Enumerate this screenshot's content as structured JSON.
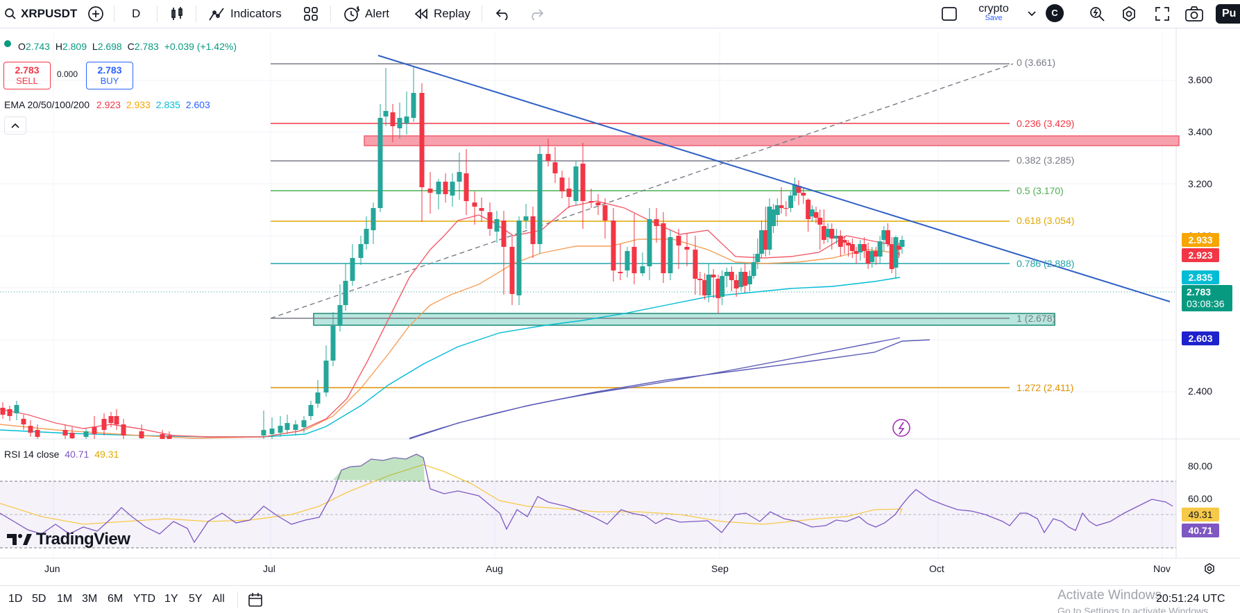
{
  "toolbar": {
    "symbol": "XRPUSDT",
    "interval": "D",
    "indicators_label": "Indicators",
    "alert_label": "Alert",
    "replay_label": "Replay",
    "layout_name": "crypto",
    "layout_status": "Save",
    "account_initial": "C",
    "publish_label": "Pu"
  },
  "legend": {
    "o_label": "O",
    "o": "2.743",
    "h_label": "H",
    "h": "2.809",
    "l_label": "L",
    "l": "2.698",
    "c_label": "C",
    "c": "2.783",
    "change": "+0.039 (+1.42%)",
    "sell_price": "2.783",
    "sell_label": "SELL",
    "spread": "0.000",
    "buy_price": "2.783",
    "buy_label": "BUY",
    "ema_label": "EMA 20/50/100/200",
    "ema20": "2.923",
    "ema50": "2.933",
    "ema100": "2.835",
    "ema200": "2.603"
  },
  "price_axis": {
    "ticks": [
      "3.600",
      "3.400",
      "3.200",
      "2.400"
    ],
    "partial_tick": "3.000",
    "label_ema50": "2.933",
    "label_ema20": "2.923",
    "label_ema100": "2.835",
    "label_last": "2.783",
    "label_countdown": "03:08:36",
    "label_ema200": "2.603"
  },
  "fibonacci": [
    {
      "label": "0 (3.661)",
      "color": "#787b86"
    },
    {
      "label": "0.236 (3.429)",
      "color": "#f23645"
    },
    {
      "label": "0.382 (3.285)",
      "color": "#787b86"
    },
    {
      "label": "0.5 (3.170)",
      "color": "#4caf50"
    },
    {
      "label": "0.618 (3.054)",
      "color": "#e0a800"
    },
    {
      "label": "0.786 (2.888)",
      "color": "#1fa3a8"
    },
    {
      "label": "1 (2.678)",
      "color": "#787b86"
    },
    {
      "label": "1.272 (2.411)",
      "color": "#e09100"
    }
  ],
  "rsi": {
    "label": "RSI 14 close",
    "value": "40.71",
    "ma": "49.31",
    "ticks": [
      "80.00",
      "60.00"
    ],
    "label_ma": "49.31",
    "label_value": "40.71"
  },
  "time_axis": [
    "Jun",
    "Jul",
    "Aug",
    "Sep",
    "Oct",
    "Nov"
  ],
  "ranges": [
    "1D",
    "5D",
    "1M",
    "3M",
    "6M",
    "YTD",
    "1Y",
    "5Y",
    "All"
  ],
  "clock": "20:51:24 UTC",
  "watermark": {
    "line1": "Activate Windows",
    "line2": "Go to Settings to activate Windows."
  },
  "brand": "TradingView",
  "colors": {
    "up": "#26a69a",
    "down": "#f23645",
    "ema20": "#f23645",
    "ema50": "#f7a600",
    "ema100": "#00bcd4",
    "ema200": "#2962ff",
    "rsi": "#7e57c2",
    "trendline": "#2962ff"
  }
}
